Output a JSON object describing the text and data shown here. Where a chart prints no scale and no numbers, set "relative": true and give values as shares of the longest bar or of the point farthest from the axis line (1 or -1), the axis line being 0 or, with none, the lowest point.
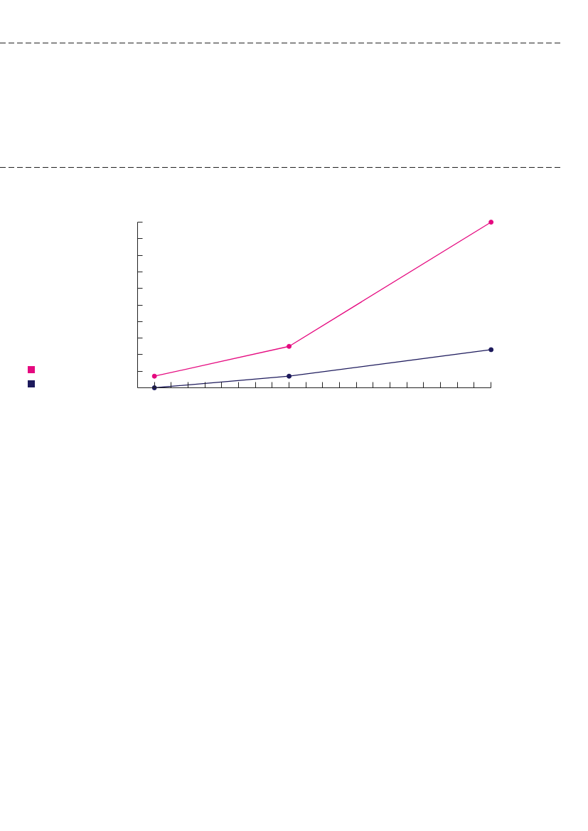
{
  "chart_data": {
    "type": "line",
    "relative": true,
    "categories": [
      null,
      null,
      null,
      null,
      null,
      null,
      null,
      null,
      null,
      null,
      null,
      null,
      null,
      null,
      null,
      null,
      null,
      null,
      null,
      null,
      null
    ],
    "series": [
      {
        "color": "#e5097f",
        "values": [
          0.07,
          null,
          null,
          null,
          null,
          null,
          null,
          null,
          0.25,
          null,
          null,
          null,
          null,
          null,
          null,
          null,
          null,
          null,
          null,
          null,
          1.0
        ]
      },
      {
        "color": "#1d1a5c",
        "values": [
          0.0,
          null,
          null,
          null,
          null,
          null,
          null,
          null,
          0.07,
          null,
          null,
          null,
          null,
          null,
          null,
          null,
          null,
          null,
          null,
          null,
          0.23
        ]
      }
    ],
    "marker": "circle",
    "line_style": "solid"
  }
}
